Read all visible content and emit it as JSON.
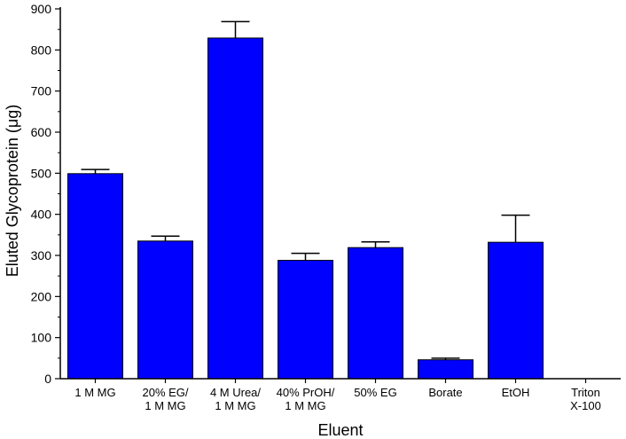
{
  "chart_data": {
    "type": "bar",
    "xlabel": "Eluent",
    "ylabel": "Eluted Glycoprotein (μg)",
    "ylim": [
      0,
      900
    ],
    "y_ticks": [
      "0",
      "100",
      "200",
      "300",
      "400",
      "500",
      "600",
      "700",
      "800",
      "900"
    ],
    "y_tick_values": [
      0,
      100,
      200,
      300,
      400,
      500,
      600,
      700,
      800,
      900
    ],
    "categories": [
      [
        "1 M MG"
      ],
      [
        "20% EG/",
        "1 M MG"
      ],
      [
        "4 M Urea/",
        "1 M MG"
      ],
      [
        "40% PrOH/",
        "1 M MG"
      ],
      [
        "50% EG"
      ],
      [
        "Borate"
      ],
      [
        "EtOH"
      ],
      [
        "Triton",
        "X-100"
      ]
    ],
    "values": [
      499,
      335,
      829,
      288,
      319,
      46,
      332,
      0
    ],
    "error_upper": [
      10,
      12,
      40,
      17,
      14,
      4,
      66,
      0
    ],
    "bar_color": "#0000ff",
    "grid": false,
    "legend": "none"
  }
}
